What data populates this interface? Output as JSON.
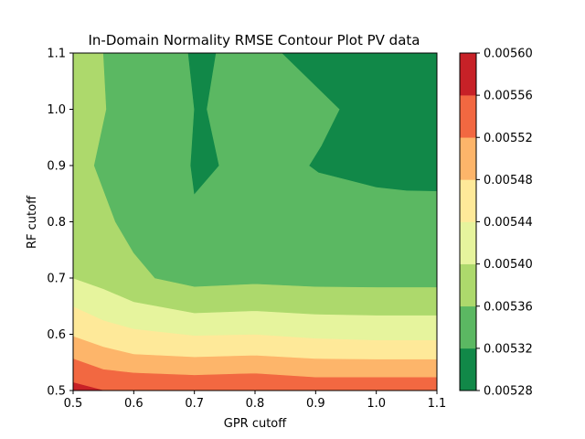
{
  "chart_data": {
    "type": "contour",
    "title": "In-Domain Normality RMSE Contour Plot PV data",
    "xlabel": "GPR cutoff",
    "ylabel": "RF cutoff",
    "xlim": [
      0.5,
      1.1
    ],
    "ylim": [
      0.5,
      1.1
    ],
    "xticks": [
      "0.5",
      "0.6",
      "0.7",
      "0.8",
      "0.9",
      "1.0",
      "1.1"
    ],
    "yticks": [
      "0.5",
      "0.6",
      "0.7",
      "0.8",
      "0.9",
      "1.0",
      "1.1"
    ],
    "x_tick_values": [
      0.5,
      0.6,
      0.7,
      0.8,
      0.9,
      1.0,
      1.1
    ],
    "y_tick_values": [
      0.5,
      0.6,
      0.7,
      0.8,
      0.9,
      1.0,
      1.1
    ],
    "colormap": "RdYlGn_r",
    "colorbar": {
      "levels": [
        0.00528,
        0.00532,
        0.00536,
        0.0054,
        0.00544,
        0.00548,
        0.00552,
        0.00556,
        0.0056
      ],
      "labels": [
        "0.00528",
        "0.00532",
        "0.00536",
        "0.00540",
        "0.00544",
        "0.00548",
        "0.00552",
        "0.00556",
        "0.00560"
      ],
      "colors": [
        "#118848",
        "#5bb862",
        "#add96c",
        "#e6f49d",
        "#fee999",
        "#fdb56a",
        "#f26841",
        "#c72127"
      ]
    },
    "boundaries": [
      [
        [
          0.5,
          0.514
        ],
        [
          0.55,
          0.5
        ]
      ],
      [
        [
          0.5,
          0.557
        ],
        [
          0.55,
          0.538
        ],
        [
          0.6,
          0.532
        ],
        [
          0.7,
          0.528
        ],
        [
          0.8,
          0.531
        ],
        [
          0.9,
          0.524
        ],
        [
          1.0,
          0.524
        ],
        [
          1.1,
          0.524
        ]
      ],
      [
        [
          0.5,
          0.597
        ],
        [
          0.55,
          0.578
        ],
        [
          0.6,
          0.565
        ],
        [
          0.7,
          0.56
        ],
        [
          0.8,
          0.563
        ],
        [
          0.9,
          0.557
        ],
        [
          1.0,
          0.556
        ],
        [
          1.1,
          0.556
        ]
      ],
      [
        [
          0.5,
          0.65
        ],
        [
          0.55,
          0.625
        ],
        [
          0.6,
          0.61
        ],
        [
          0.7,
          0.598
        ],
        [
          0.8,
          0.6
        ],
        [
          0.9,
          0.593
        ],
        [
          1.0,
          0.59
        ],
        [
          1.1,
          0.59
        ]
      ],
      [
        [
          0.5,
          0.7
        ],
        [
          0.55,
          0.681
        ],
        [
          0.6,
          0.658
        ],
        [
          0.7,
          0.638
        ],
        [
          0.8,
          0.642
        ],
        [
          0.9,
          0.636
        ],
        [
          1.0,
          0.634
        ],
        [
          1.1,
          0.634
        ]
      ],
      [
        [
          0.55,
          1.1
        ],
        [
          0.555,
          1.0
        ],
        [
          0.535,
          0.9
        ],
        [
          0.57,
          0.8
        ],
        [
          0.6,
          0.745
        ],
        [
          0.635,
          0.7
        ],
        [
          0.7,
          0.685
        ],
        [
          0.8,
          0.69
        ],
        [
          0.9,
          0.685
        ],
        [
          1.0,
          0.684
        ],
        [
          1.1,
          0.684
        ]
      ],
      [
        [
          0.69,
          1.1
        ],
        [
          0.7,
          1.0
        ],
        [
          0.694,
          0.9
        ],
        [
          0.7,
          0.85
        ],
        [
          0.74,
          0.9
        ],
        [
          0.72,
          1.0
        ],
        [
          0.735,
          1.1
        ]
      ],
      [
        [
          0.845,
          1.1
        ],
        [
          0.94,
          1.0
        ],
        [
          0.91,
          0.935
        ],
        [
          0.89,
          0.9
        ],
        [
          0.905,
          0.888
        ],
        [
          1.0,
          0.862
        ],
        [
          1.05,
          0.856
        ],
        [
          1.1,
          0.855
        ]
      ]
    ],
    "regions": [
      {
        "polygon": [
          [
            0.5,
            0.5
          ],
          [
            1.1,
            0.5
          ],
          [
            1.1,
            1.1
          ],
          [
            0.5,
            1.1
          ]
        ],
        "color": "#f26841"
      },
      {
        "polygon": [
          [
            0.5,
            0.5
          ],
          [
            0.55,
            0.5
          ],
          [
            0.5,
            0.514
          ]
        ],
        "color": "#c72127"
      },
      {
        "polygon": [
          [
            0.5,
            0.557
          ],
          [
            0.55,
            0.538
          ],
          [
            0.6,
            0.532
          ],
          [
            0.7,
            0.528
          ],
          [
            0.8,
            0.531
          ],
          [
            0.9,
            0.524
          ],
          [
            1.0,
            0.524
          ],
          [
            1.1,
            0.524
          ],
          [
            1.1,
            1.1
          ],
          [
            0.5,
            1.1
          ]
        ],
        "color": "#fdb56a"
      },
      {
        "polygon": [
          [
            0.5,
            0.597
          ],
          [
            0.55,
            0.578
          ],
          [
            0.6,
            0.565
          ],
          [
            0.7,
            0.56
          ],
          [
            0.8,
            0.563
          ],
          [
            0.9,
            0.557
          ],
          [
            1.0,
            0.556
          ],
          [
            1.1,
            0.556
          ],
          [
            1.1,
            1.1
          ],
          [
            0.5,
            1.1
          ]
        ],
        "color": "#fee999"
      },
      {
        "polygon": [
          [
            0.5,
            0.65
          ],
          [
            0.55,
            0.625
          ],
          [
            0.6,
            0.61
          ],
          [
            0.7,
            0.598
          ],
          [
            0.8,
            0.6
          ],
          [
            0.9,
            0.593
          ],
          [
            1.0,
            0.59
          ],
          [
            1.1,
            0.59
          ],
          [
            1.1,
            1.1
          ],
          [
            0.5,
            1.1
          ]
        ],
        "color": "#e6f49d"
      },
      {
        "polygon": [
          [
            0.5,
            0.7
          ],
          [
            0.55,
            0.681
          ],
          [
            0.6,
            0.658
          ],
          [
            0.7,
            0.638
          ],
          [
            0.8,
            0.642
          ],
          [
            0.9,
            0.636
          ],
          [
            1.0,
            0.634
          ],
          [
            1.1,
            0.634
          ],
          [
            1.1,
            1.1
          ],
          [
            0.5,
            1.1
          ]
        ],
        "color": "#add96c"
      },
      {
        "polygon": [
          [
            0.55,
            1.1
          ],
          [
            0.555,
            1.0
          ],
          [
            0.535,
            0.9
          ],
          [
            0.57,
            0.8
          ],
          [
            0.6,
            0.745
          ],
          [
            0.635,
            0.7
          ],
          [
            0.7,
            0.685
          ],
          [
            0.8,
            0.69
          ],
          [
            0.9,
            0.685
          ],
          [
            1.0,
            0.684
          ],
          [
            1.1,
            0.684
          ],
          [
            1.1,
            1.1
          ]
        ],
        "color": "#5bb862"
      },
      {
        "polygon": [
          [
            0.69,
            1.1
          ],
          [
            0.7,
            1.0
          ],
          [
            0.694,
            0.9
          ],
          [
            0.7,
            0.85
          ],
          [
            0.74,
            0.9
          ],
          [
            0.72,
            1.0
          ],
          [
            0.735,
            1.1
          ]
        ],
        "color": "#118848"
      },
      {
        "polygon": [
          [
            0.845,
            1.1
          ],
          [
            0.94,
            1.0
          ],
          [
            0.91,
            0.935
          ],
          [
            0.89,
            0.9
          ],
          [
            0.905,
            0.888
          ],
          [
            1.0,
            0.862
          ],
          [
            1.05,
            0.856
          ],
          [
            1.1,
            0.855
          ],
          [
            1.1,
            1.1
          ]
        ],
        "color": "#118848"
      }
    ]
  }
}
